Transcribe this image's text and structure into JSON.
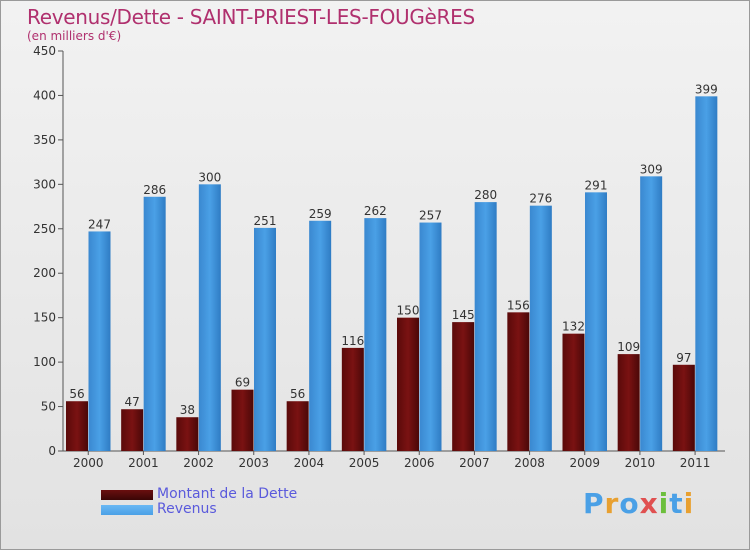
{
  "title": "Revenus/Dette - SAINT-PRIEST-LES-FOUGèRES",
  "subtitle": "(en milliers d'€)",
  "chart_data": {
    "type": "bar",
    "categories": [
      "2000",
      "2001",
      "2002",
      "2003",
      "2004",
      "2005",
      "2006",
      "2007",
      "2008",
      "2009",
      "2010",
      "2011"
    ],
    "series": [
      {
        "name": "Montant de la Dette",
        "color": "#7a1212",
        "values": [
          56,
          47,
          38,
          69,
          56,
          116,
          150,
          145,
          156,
          132,
          109,
          97
        ]
      },
      {
        "name": "Revenus",
        "color": "#4aa0e6",
        "values": [
          247,
          286,
          300,
          251,
          259,
          262,
          257,
          280,
          276,
          291,
          309,
          399
        ]
      }
    ],
    "ylim": [
      0,
      450
    ],
    "yticks": [
      0,
      50,
      100,
      150,
      200,
      250,
      300,
      350,
      400,
      450
    ],
    "grid": false,
    "legend": "bottom-left"
  },
  "legend": {
    "items": [
      {
        "label": "Montant de la Dette",
        "color": "#6a0f0f"
      },
      {
        "label": "Revenus",
        "color": "#4aa0e6"
      }
    ]
  },
  "logo": {
    "letters": [
      {
        "char": "P",
        "color": "#4aa0e6"
      },
      {
        "char": "r",
        "color": "#e8a030"
      },
      {
        "char": "o",
        "color": "#4aa0e6"
      },
      {
        "char": "x",
        "color": "#e05050"
      },
      {
        "char": "i",
        "color": "#6cbf3c"
      },
      {
        "char": "t",
        "color": "#4aa0e6"
      },
      {
        "char": "i",
        "color": "#e8a030"
      }
    ]
  }
}
